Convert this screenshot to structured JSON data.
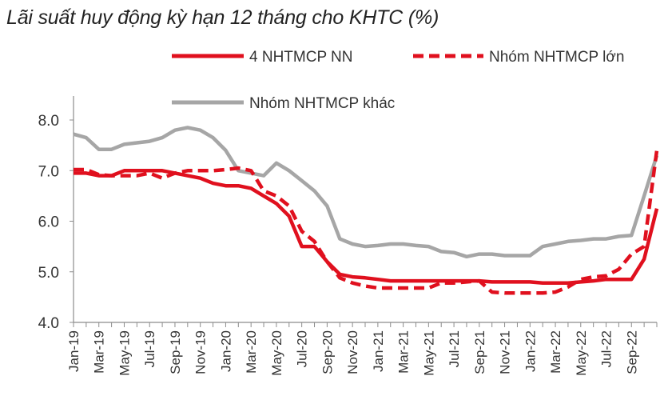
{
  "chart_data": {
    "type": "line",
    "title": "Lãi suất huy động kỳ hạn 12 tháng cho KHTC (%)",
    "xlabel": "",
    "ylabel": "",
    "ylim": [
      4.0,
      8.0
    ],
    "yticks": [
      "4.0",
      "5.0",
      "6.0",
      "7.0",
      "8.0"
    ],
    "x": [
      "Jan-19",
      "Feb-19",
      "Mar-19",
      "Apr-19",
      "May-19",
      "Jun-19",
      "Jul-19",
      "Aug-19",
      "Sep-19",
      "Oct-19",
      "Nov-19",
      "Dec-19",
      "Jan-20",
      "Feb-20",
      "Mar-20",
      "Apr-20",
      "May-20",
      "Jun-20",
      "Jul-20",
      "Aug-20",
      "Sep-20",
      "Oct-20",
      "Nov-20",
      "Dec-20",
      "Jan-21",
      "Feb-21",
      "Mar-21",
      "Apr-21",
      "May-21",
      "Jun-21",
      "Jul-21",
      "Aug-21",
      "Sep-21",
      "Oct-21",
      "Nov-21",
      "Dec-21",
      "Jan-22",
      "Feb-22",
      "Mar-22",
      "Apr-22",
      "May-22",
      "Jun-22",
      "Jul-22",
      "Aug-22",
      "Sep-22",
      "Oct-22",
      "Nov-22"
    ],
    "xticks": [
      "Jan-19",
      "Mar-19",
      "May-19",
      "Jul-19",
      "Sep-19",
      "Nov-19",
      "Jan-20",
      "Mar-20",
      "May-20",
      "Jul-20",
      "Sep-20",
      "Nov-20",
      "Jan-21",
      "Mar-21",
      "May-21",
      "Jul-21",
      "Sep-21",
      "Nov-21",
      "Jan-22",
      "Mar-22",
      "May-22",
      "Jul-22",
      "Sep-22"
    ],
    "series": [
      {
        "name": "4 NHTMCP NN",
        "color": "#e0101e",
        "style": "solid",
        "values": [
          6.95,
          6.95,
          6.9,
          6.9,
          7.0,
          7.0,
          7.0,
          7.0,
          6.95,
          6.9,
          6.85,
          6.75,
          6.7,
          6.7,
          6.65,
          6.5,
          6.35,
          6.1,
          5.5,
          5.5,
          5.2,
          4.95,
          4.9,
          4.88,
          4.85,
          4.82,
          4.82,
          4.82,
          4.82,
          4.82,
          4.82,
          4.82,
          4.82,
          4.8,
          4.8,
          4.8,
          4.8,
          4.78,
          4.78,
          4.78,
          4.8,
          4.82,
          4.85,
          4.85,
          4.85,
          5.25,
          6.25
        ]
      },
      {
        "name": "Nhóm NHTMCP lớn",
        "color": "#e0101e",
        "style": "dashed",
        "values": [
          7.02,
          7.02,
          6.92,
          6.9,
          6.9,
          6.9,
          6.95,
          6.85,
          6.95,
          7.0,
          7.0,
          7.0,
          7.02,
          7.05,
          7.0,
          6.6,
          6.5,
          6.3,
          5.8,
          5.6,
          5.2,
          4.88,
          4.78,
          4.72,
          4.68,
          4.68,
          4.68,
          4.68,
          4.68,
          4.78,
          4.78,
          4.8,
          4.82,
          4.6,
          4.58,
          4.58,
          4.58,
          4.58,
          4.6,
          4.7,
          4.85,
          4.9,
          4.92,
          5.05,
          5.35,
          5.5,
          7.4
        ]
      },
      {
        "name": "Nhóm NHTMCP khác",
        "color": "#a6a6a6",
        "style": "solid",
        "values": [
          7.72,
          7.65,
          7.42,
          7.42,
          7.52,
          7.55,
          7.58,
          7.65,
          7.8,
          7.85,
          7.8,
          7.65,
          7.4,
          7.0,
          6.95,
          6.9,
          7.15,
          7.0,
          6.8,
          6.6,
          6.3,
          5.65,
          5.55,
          5.5,
          5.52,
          5.55,
          5.55,
          5.52,
          5.5,
          5.4,
          5.38,
          5.3,
          5.35,
          5.35,
          5.32,
          5.32,
          5.32,
          5.5,
          5.55,
          5.6,
          5.62,
          5.65,
          5.65,
          5.7,
          5.72,
          6.5,
          7.3
        ]
      }
    ],
    "legend": [
      {
        "label": "4 NHTMCP NN"
      },
      {
        "label": "Nhóm NHTMCP lớn"
      },
      {
        "label": "Nhóm NHTMCP khác"
      }
    ]
  }
}
